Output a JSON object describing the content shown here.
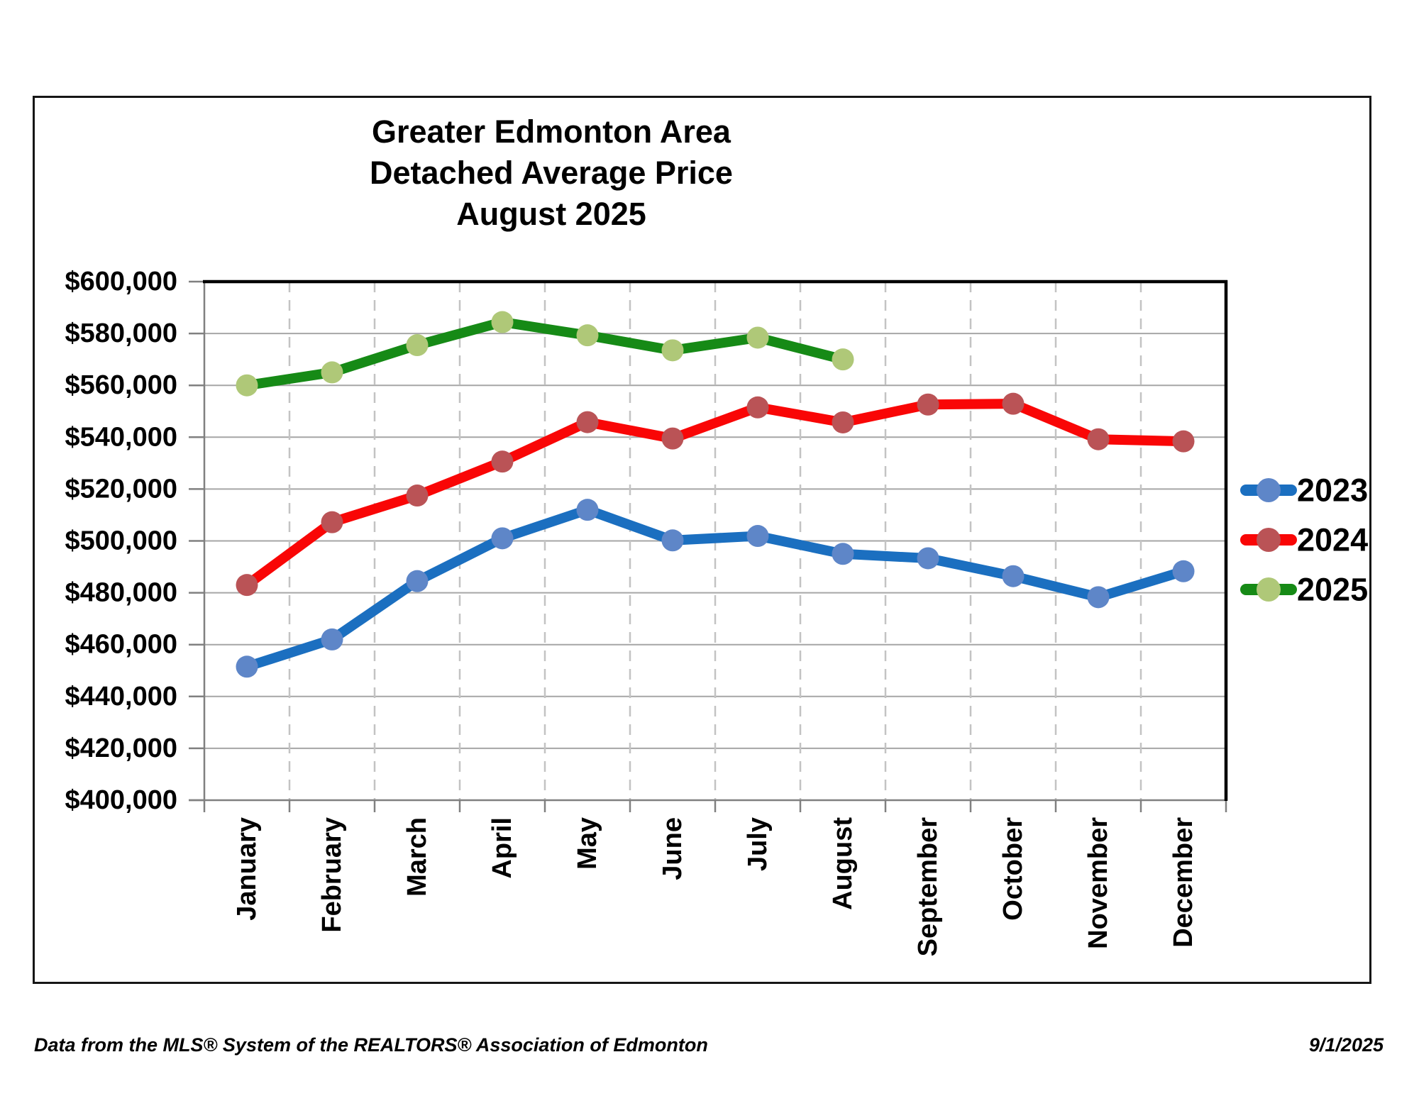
{
  "chart_data": {
    "type": "line",
    "title_lines": [
      "Greater Edmonton Area",
      "Detached Average Price",
      "August 2025"
    ],
    "categories": [
      "January",
      "February",
      "March",
      "April",
      "May",
      "June",
      "July",
      "August",
      "September",
      "October",
      "November",
      "December"
    ],
    "series": [
      {
        "name": "2023",
        "line_color": "#1B6FC0",
        "marker_color": "#5E86C8",
        "values": [
          451500,
          462000,
          484500,
          501000,
          512000,
          500200,
          501900,
          495000,
          493300,
          486400,
          478300,
          488300
        ]
      },
      {
        "name": "2024",
        "line_color": "#F90606",
        "marker_color": "#BA5356",
        "values": [
          483000,
          507200,
          517500,
          530600,
          545800,
          539500,
          551500,
          545700,
          552600,
          552900,
          539200,
          538400
        ]
      },
      {
        "name": "2025",
        "line_color": "#168A16",
        "marker_color": "#AFC878",
        "values": [
          560000,
          565000,
          575500,
          584400,
          579300,
          573500,
          578400,
          570000
        ]
      }
    ],
    "ylim": [
      400000,
      600000
    ],
    "ytick_step": 20000,
    "ytick_prefix": "$",
    "grid": true,
    "legend_position": "right",
    "colors": {
      "gridline": "#A6A6A6",
      "dashed_gridline": "#C3C3C3",
      "axis": "#808080",
      "plot_border": "#000000"
    }
  },
  "footer": {
    "source": "Data from the MLS® System of the REALTORS® Association of Edmonton",
    "date": "9/1/2025"
  }
}
